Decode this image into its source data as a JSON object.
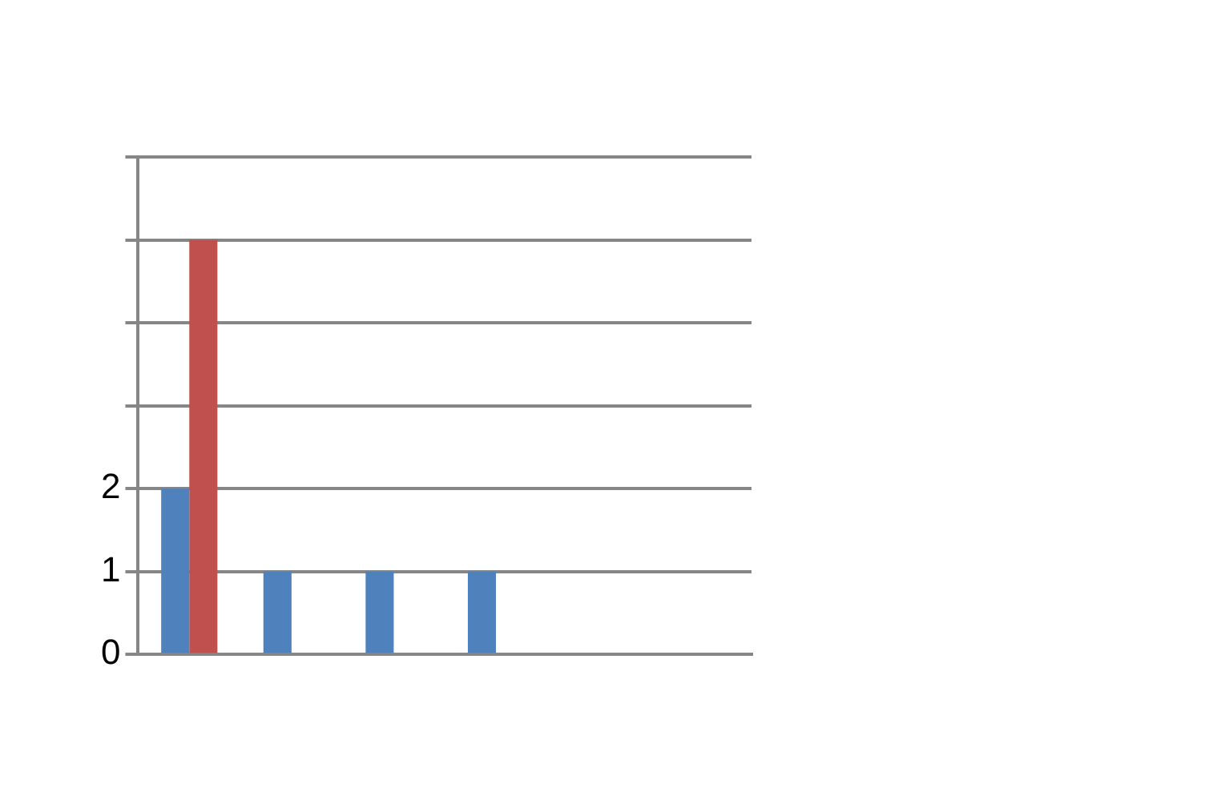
{
  "chart_data": {
    "type": "bar",
    "grid": "y",
    "legend": false,
    "categories": [
      null,
      null,
      null,
      null,
      null,
      null
    ],
    "ylim": [
      0,
      6
    ],
    "yticks": [
      0,
      1,
      2,
      {
        "value": 3,
        "label": null
      },
      {
        "value": 4,
        "label": null
      },
      {
        "value": 5,
        "label": null
      },
      {
        "value": 6,
        "label": null
      }
    ],
    "series": [
      {
        "color": "#4f81bd",
        "values": [
          2,
          1,
          1,
          1,
          0,
          0
        ]
      },
      {
        "color": "#c0504d",
        "values": [
          5,
          0,
          0,
          0,
          0,
          0
        ]
      }
    ]
  }
}
